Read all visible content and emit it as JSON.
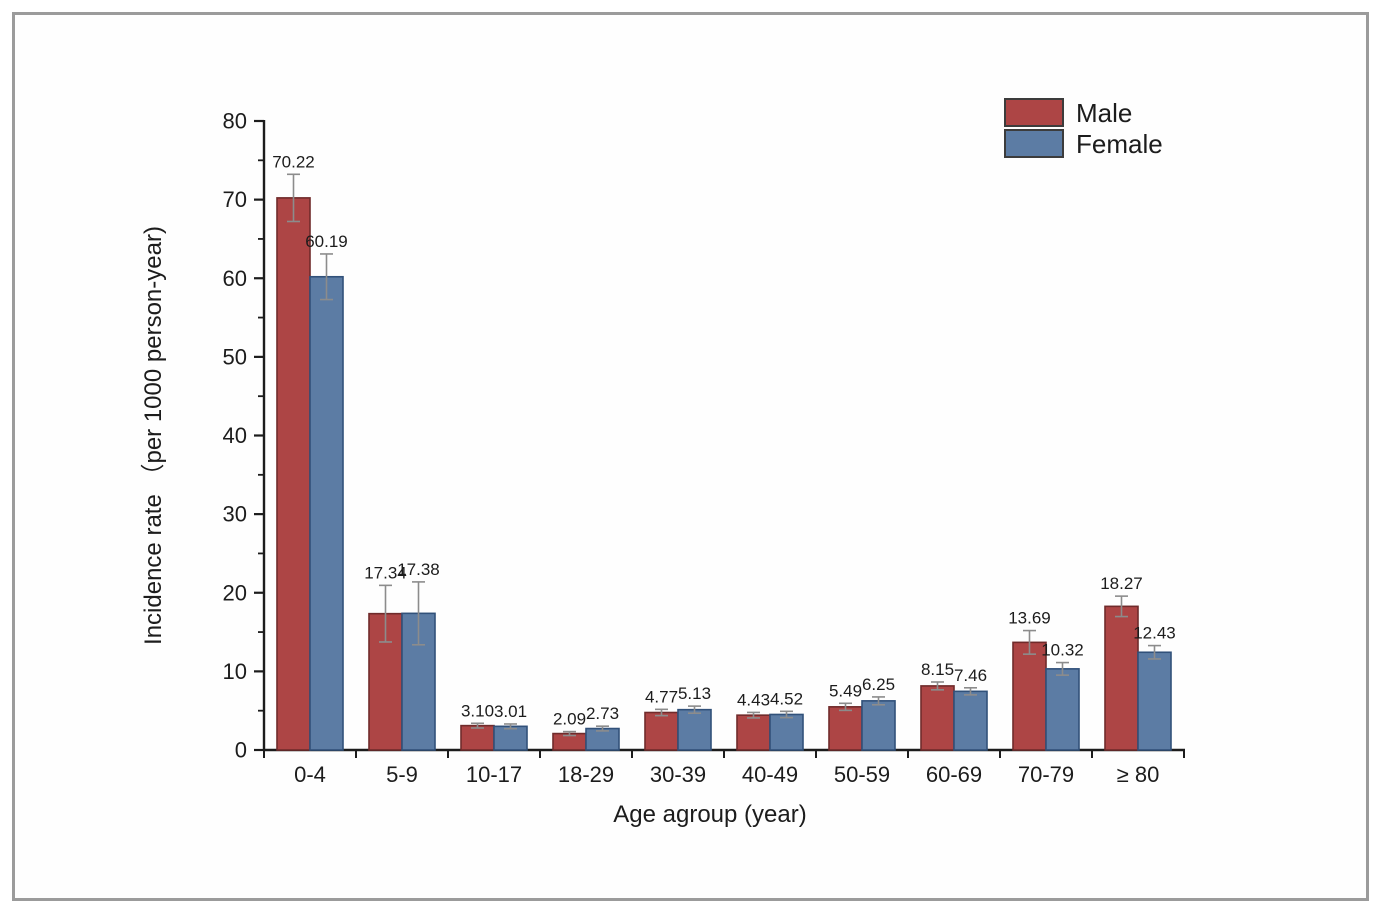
{
  "figure": {
    "border_color": "#9b9b9b",
    "background": "#fefefe"
  },
  "chart_data": {
    "type": "bar",
    "title": "",
    "xlabel": "Age agroup (year)",
    "ylabel": "Incidence rate （per 1000 person-year)",
    "ylim": [
      0,
      80
    ],
    "ytick_step": 10,
    "yminor_step": 5,
    "ytick_labels": [
      "0",
      "10",
      "20",
      "30",
      "40",
      "50",
      "60",
      "70",
      "80"
    ],
    "grid": false,
    "legend_position": "top-right",
    "categories": [
      "0-4",
      "5-9",
      "10-17",
      "18-29",
      "30-39",
      "40-49",
      "50-59",
      "60-69",
      "70-79",
      "≥ 80"
    ],
    "series": [
      {
        "name": "Male",
        "fill": "#ad4545",
        "stroke": "#702b2b",
        "values": [
          70.22,
          17.34,
          3.1,
          2.09,
          4.77,
          4.43,
          5.49,
          8.15,
          13.69,
          18.27
        ],
        "errors": [
          3.0,
          3.6,
          0.3,
          0.25,
          0.4,
          0.35,
          0.45,
          0.5,
          1.5,
          1.3
        ],
        "labels": [
          "70.22",
          "17.34",
          "3.10",
          "2.09",
          "4.77",
          "4.43",
          "5.49",
          "8.15",
          "13.69",
          "18.27"
        ]
      },
      {
        "name": "Female",
        "fill": "#5c7ca4",
        "stroke": "#31517a",
        "values": [
          60.19,
          17.38,
          3.01,
          2.73,
          5.13,
          4.52,
          6.25,
          7.46,
          10.32,
          12.43
        ],
        "errors": [
          2.9,
          4.0,
          0.3,
          0.3,
          0.45,
          0.4,
          0.5,
          0.45,
          0.8,
          0.85
        ],
        "labels": [
          "60.19",
          "17.38",
          "3.01",
          "2.73",
          "5.13",
          "4.52",
          "6.25",
          "7.46",
          "10.32",
          "12.43"
        ]
      }
    ],
    "error_bar_color": "#8c8c8c",
    "axis_color": "#1c1c1c",
    "text_color": "#1c1c1c"
  }
}
